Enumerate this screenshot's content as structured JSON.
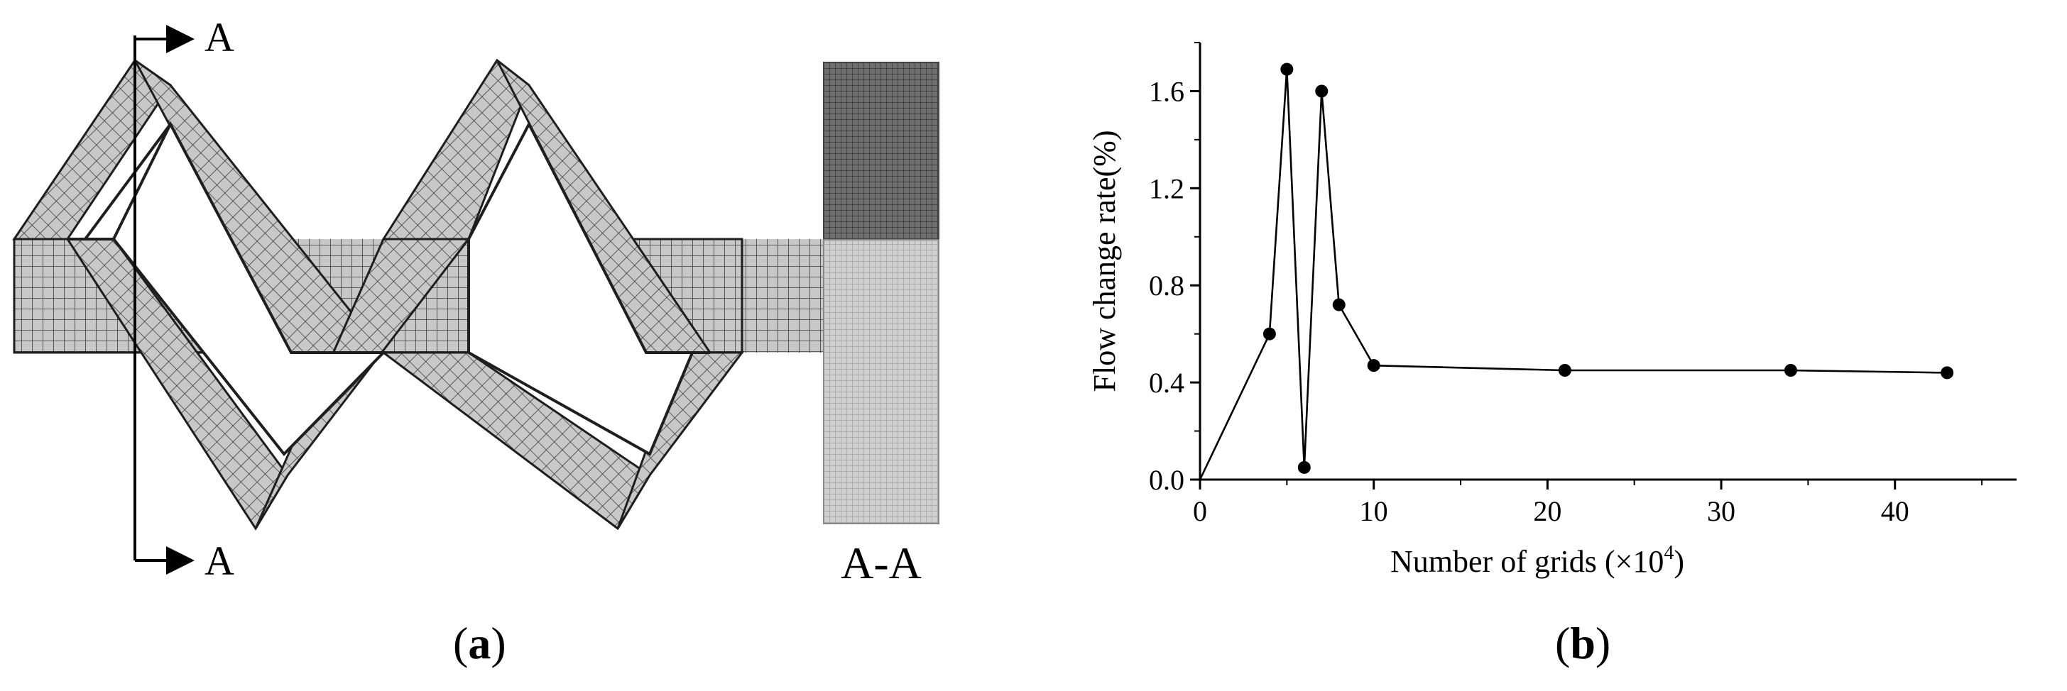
{
  "panel_a": {
    "label_open": "(",
    "label_letter": "a",
    "label_close": ")",
    "section_top": "A",
    "section_bottom": "A",
    "section_caption": "A-A"
  },
  "panel_b": {
    "label_open": "(",
    "label_letter": "b",
    "label_close": ")"
  },
  "chart_data": {
    "type": "line",
    "title": "",
    "xlabel_main": "Number of grids (×10",
    "xlabel_sup": "4",
    "xlabel_close": ")",
    "ylabel": "Flow change rate(%)",
    "x": [
      0,
      4,
      5,
      6,
      7,
      8,
      10,
      21,
      34,
      43
    ],
    "y": [
      0.0,
      0.6,
      1.69,
      0.05,
      1.6,
      0.72,
      0.47,
      0.45,
      0.45,
      0.44
    ],
    "xlim": [
      0,
      47
    ],
    "ylim": [
      0,
      1.8
    ],
    "xticks": [
      0,
      10,
      20,
      30,
      40
    ],
    "yticks": [
      0.0,
      0.4,
      0.8,
      1.2,
      1.6
    ],
    "xtick_labels": [
      "0",
      "10",
      "20",
      "30",
      "40"
    ],
    "ytick_labels": [
      "0.0",
      "0.4",
      "0.8",
      "1.2",
      "1.6"
    ],
    "grid": false,
    "marker": "circle",
    "colors": {
      "line": "#000000",
      "marker": "#000000"
    }
  },
  "colors": {
    "mesh_fill": "#c8c8c8",
    "mesh_line": "#2a2a2a",
    "section_dark": "#6e6e6e",
    "section_light": "#c4c4c4"
  }
}
